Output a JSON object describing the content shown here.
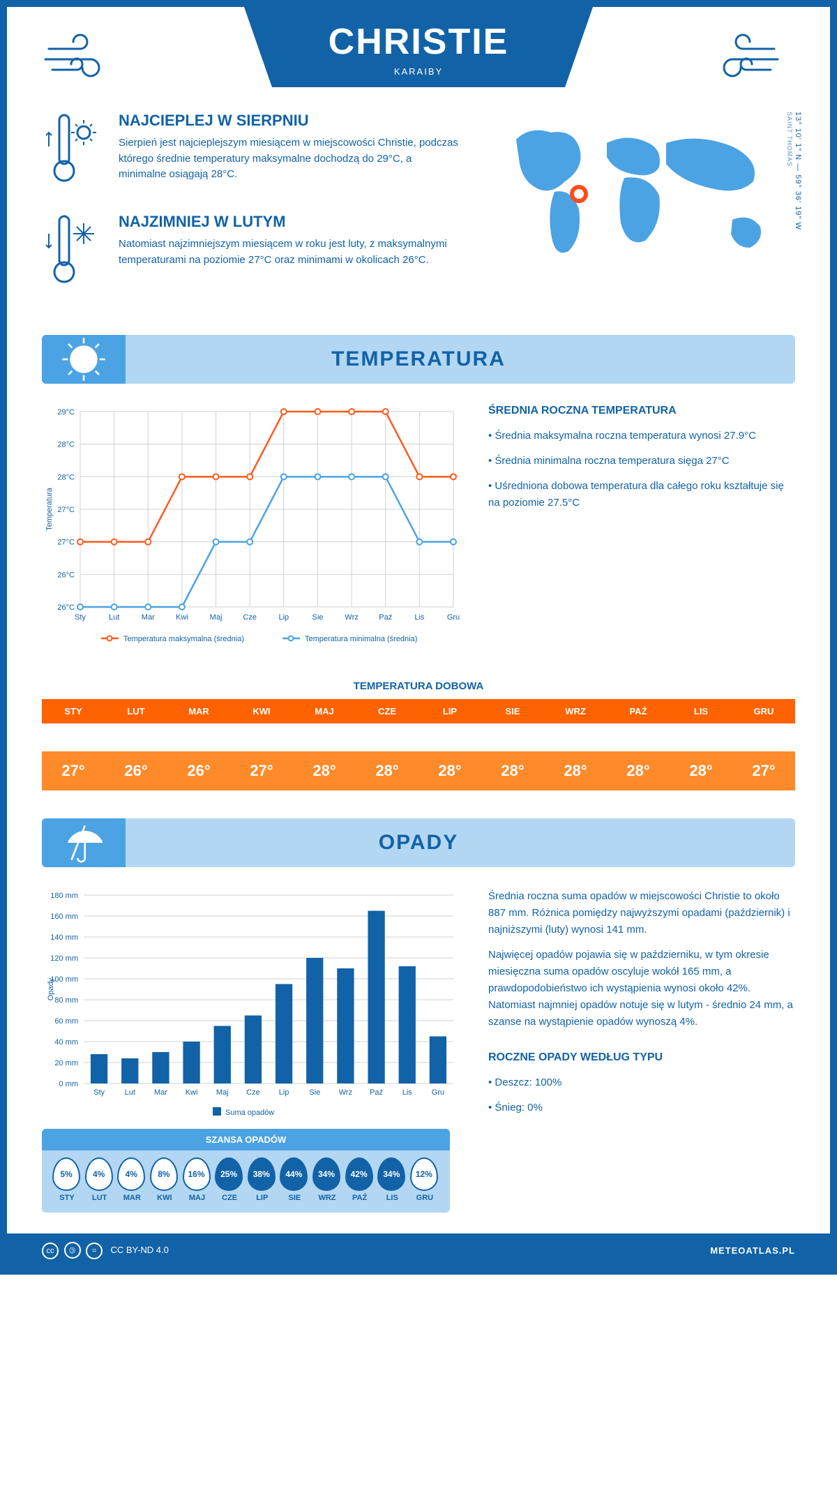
{
  "header": {
    "title": "CHRISTIE",
    "subtitle": "KARAIBY"
  },
  "coords": {
    "line1": "13° 10' 1\" N — 59° 36' 19\" W",
    "line2": "SAINT THOMAS"
  },
  "facts": {
    "hot": {
      "title": "NAJCIEPLEJ W SIERPNIU",
      "text": "Sierpień jest najcieplejszym miesiącem w miejscowości Christie, podczas którego średnie temperatury maksymalne dochodzą do 29°C, a minimalne osiągają 28°C."
    },
    "cold": {
      "title": "NAJZIMNIEJ W LUTYM",
      "text": "Natomiast najzimniejszym miesiącem w roku jest luty, z maksymalnymi temperaturami na poziomie 27°C oraz minimami w okolicach 26°C."
    }
  },
  "sections": {
    "temperature": "TEMPERATURA",
    "precip": "OPADY"
  },
  "months": [
    "Sty",
    "Lut",
    "Mar",
    "Kwi",
    "Maj",
    "Cze",
    "Lip",
    "Sie",
    "Wrz",
    "Paź",
    "Lis",
    "Gru"
  ],
  "months_upper": [
    "STY",
    "LUT",
    "MAR",
    "KWI",
    "MAJ",
    "CZE",
    "LIP",
    "SIE",
    "WRZ",
    "PAŹ",
    "LIS",
    "GRU"
  ],
  "temp_chart": {
    "type": "line",
    "ylabel": "Temperatura",
    "y_ticks": [
      "26°C",
      "26°C",
      "27°C",
      "27°C",
      "28°C",
      "28°C",
      "29°C"
    ],
    "y_values": [
      26,
      26.5,
      27,
      27.5,
      28,
      28.5,
      29
    ],
    "series": [
      {
        "name": "Temperatura maksymalna (średnia)",
        "color": "#ff5a1f",
        "values": [
          27,
          27,
          27,
          28,
          28,
          28,
          29,
          29,
          29,
          29,
          28,
          28
        ]
      },
      {
        "name": "Temperatura minimalna (średnia)",
        "color": "#4ba3e3",
        "values": [
          26,
          26,
          26,
          26,
          27,
          27,
          28,
          28,
          28,
          28,
          27,
          27
        ]
      }
    ],
    "ymin": 26,
    "ymax": 29
  },
  "temp_text": {
    "heading": "ŚREDNIA ROCZNA TEMPERATURA",
    "bullets": [
      "Średnia maksymalna roczna temperatura wynosi 27.9°C",
      "Średnia minimalna roczna temperatura sięga 27°C",
      "Uśredniona dobowa temperatura dla całego roku kształtuje się na poziomie 27.5°C"
    ]
  },
  "daily_strip": {
    "title": "TEMPERATURA DOBOWA",
    "values": [
      "27°",
      "26°",
      "26°",
      "27°",
      "28°",
      "28°",
      "28°",
      "28°",
      "28°",
      "28°",
      "28°",
      "27°"
    ]
  },
  "precip_chart": {
    "type": "bar",
    "ylabel": "Opady",
    "y_ticks": [
      0,
      20,
      40,
      60,
      80,
      100,
      120,
      140,
      160,
      180
    ],
    "y_tick_labels": [
      "0 mm",
      "20 mm",
      "40 mm",
      "60 mm",
      "80 mm",
      "100 mm",
      "120 mm",
      "140 mm",
      "160 mm",
      "180 mm"
    ],
    "series_name": "Suma opadów",
    "color": "#1262a7",
    "values": [
      28,
      24,
      30,
      40,
      55,
      65,
      95,
      120,
      110,
      165,
      112,
      45
    ],
    "ymax": 180
  },
  "precip_text": {
    "p1": "Średnia roczna suma opadów w miejscowości Christie to około 887 mm. Różnica pomiędzy najwyższymi opadami (październik) i najniższymi (luty) wynosi 141 mm.",
    "p2": "Najwięcej opadów pojawia się w październiku, w tym okresie miesięczna suma opadów oscyluje wokół 165 mm, a prawdopodobieństwo ich wystąpienia wynosi około 42%. Natomiast najmniej opadów notuje się w lutym - średnio 24 mm, a szanse na wystąpienie opadów wynoszą 4%.",
    "type_heading": "ROCZNE OPADY WEDŁUG TYPU",
    "types": [
      "Deszcz: 100%",
      "Śnieg: 0%"
    ]
  },
  "chance": {
    "title": "SZANSA OPADÓW",
    "values": [
      5,
      4,
      4,
      8,
      16,
      25,
      38,
      44,
      34,
      42,
      34,
      12
    ],
    "light_color": "#b3d7f2",
    "dark_color": "#1262a7",
    "threshold": 20
  },
  "footer": {
    "license": "CC BY-ND 4.0",
    "site": "METEOATLAS.PL"
  }
}
